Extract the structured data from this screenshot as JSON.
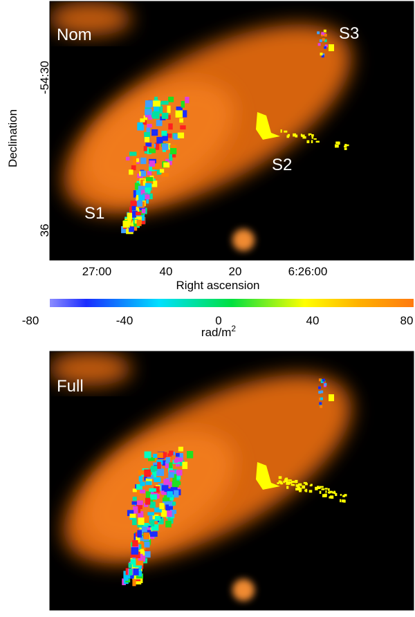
{
  "panels": [
    {
      "label": "Nom",
      "sources": [
        "S1",
        "S2",
        "S3"
      ]
    },
    {
      "label": "Full"
    }
  ],
  "axes": {
    "y_label": "Declination",
    "y_ticks": [
      "-54:30",
      "36"
    ],
    "x_label": "Right ascension",
    "x_ticks": [
      "27:00",
      "40",
      "20",
      "6:26:00"
    ]
  },
  "colorbar": {
    "range": [
      -80,
      80
    ],
    "ticks": [
      -80,
      -40,
      0,
      40,
      80
    ],
    "label": "rad/m",
    "label_superscript": "2"
  }
}
